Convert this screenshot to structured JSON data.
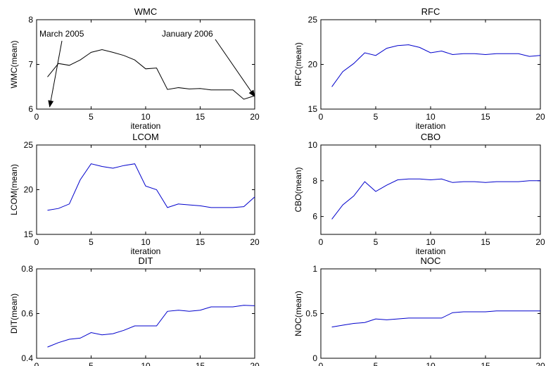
{
  "chart_data": [
    {
      "type": "line",
      "title": "WMC",
      "xlabel": "iteration",
      "ylabel": "WMC(mean)",
      "xlim": [
        0,
        20
      ],
      "ylim": [
        6,
        8
      ],
      "xticks": [
        0,
        5,
        10,
        15,
        20
      ],
      "yticks": [
        6,
        7,
        8
      ],
      "color": "#000000",
      "x": [
        1,
        2,
        3,
        4,
        5,
        6,
        7,
        8,
        9,
        10,
        11,
        12,
        13,
        14,
        15,
        16,
        17,
        18,
        19,
        20
      ],
      "values": [
        6.72,
        7.02,
        6.98,
        7.1,
        7.27,
        7.33,
        7.27,
        7.2,
        7.1,
        6.9,
        6.92,
        6.44,
        6.48,
        6.45,
        6.46,
        6.43,
        6.43,
        6.43,
        6.22,
        6.3
      ],
      "annotations": [
        {
          "text": "March 2005",
          "point_x": 1.2,
          "point_y": 6.05
        },
        {
          "text": "January 2006",
          "point_x": 20,
          "point_y": 6.28
        }
      ]
    },
    {
      "type": "line",
      "title": "RFC",
      "xlabel": "iteration",
      "ylabel": "RFC(mean)",
      "xlim": [
        0,
        20
      ],
      "ylim": [
        15,
        25
      ],
      "xticks": [
        0,
        5,
        10,
        15,
        20
      ],
      "yticks": [
        15,
        20,
        25
      ],
      "color": "#0000cc",
      "x": [
        1,
        2,
        3,
        4,
        5,
        6,
        7,
        8,
        9,
        10,
        11,
        12,
        13,
        14,
        15,
        16,
        17,
        18,
        19,
        20
      ],
      "values": [
        17.5,
        19.2,
        20.1,
        21.3,
        21.0,
        21.8,
        22.1,
        22.2,
        21.9,
        21.3,
        21.5,
        21.1,
        21.2,
        21.2,
        21.1,
        21.2,
        21.2,
        21.2,
        20.9,
        21.0
      ]
    },
    {
      "type": "line",
      "title": "LCOM",
      "xlabel": "iteration",
      "ylabel": "LCOM(mean)",
      "xlim": [
        0,
        20
      ],
      "ylim": [
        15,
        25
      ],
      "xticks": [
        0,
        5,
        10,
        15,
        20
      ],
      "yticks": [
        15,
        20,
        25
      ],
      "color": "#0000cc",
      "x": [
        1,
        2,
        3,
        4,
        5,
        6,
        7,
        8,
        9,
        10,
        11,
        12,
        13,
        14,
        15,
        16,
        17,
        18,
        19,
        20
      ],
      "values": [
        17.7,
        17.9,
        18.4,
        21.1,
        22.9,
        22.6,
        22.4,
        22.7,
        22.9,
        20.4,
        20.0,
        18.0,
        18.4,
        18.3,
        18.2,
        18.0,
        18.0,
        18.0,
        18.1,
        19.2
      ]
    },
    {
      "type": "line",
      "title": "CBO",
      "xlabel": "iteration",
      "ylabel": "CBO(mean)",
      "xlim": [
        0,
        20
      ],
      "ylim": [
        5,
        10
      ],
      "xticks": [
        0,
        5,
        10,
        15,
        20
      ],
      "yticks": [
        6,
        8,
        10
      ],
      "color": "#0000cc",
      "x": [
        1,
        2,
        3,
        4,
        5,
        6,
        7,
        8,
        9,
        10,
        11,
        12,
        13,
        14,
        15,
        16,
        17,
        18,
        19,
        20
      ],
      "values": [
        5.85,
        6.65,
        7.15,
        7.95,
        7.4,
        7.75,
        8.05,
        8.1,
        8.1,
        8.05,
        8.1,
        7.9,
        7.95,
        7.95,
        7.9,
        7.95,
        7.95,
        7.95,
        8.0,
        8.0
      ]
    },
    {
      "type": "line",
      "title": "DIT",
      "xlabel": "iteration",
      "ylabel": "DIT(mean)",
      "xlim": [
        0,
        20
      ],
      "ylim": [
        0.4,
        0.8
      ],
      "xticks": [
        0,
        5,
        10,
        15,
        20
      ],
      "yticks": [
        0.4,
        0.6,
        0.8
      ],
      "color": "#0000cc",
      "x": [
        1,
        2,
        3,
        4,
        5,
        6,
        7,
        8,
        9,
        10,
        11,
        12,
        13,
        14,
        15,
        16,
        17,
        18,
        19,
        20
      ],
      "values": [
        0.45,
        0.47,
        0.485,
        0.49,
        0.515,
        0.505,
        0.51,
        0.525,
        0.545,
        0.545,
        0.545,
        0.61,
        0.615,
        0.61,
        0.615,
        0.63,
        0.63,
        0.63,
        0.637,
        0.635
      ]
    },
    {
      "type": "line",
      "title": "NOC",
      "xlabel": "iteration",
      "ylabel": "NOC(mean)",
      "xlim": [
        0,
        20
      ],
      "ylim": [
        0,
        1
      ],
      "xticks": [
        0,
        5,
        10,
        15,
        20
      ],
      "yticks": [
        0,
        0.5,
        1
      ],
      "color": "#0000cc",
      "x": [
        1,
        2,
        3,
        4,
        5,
        6,
        7,
        8,
        9,
        10,
        11,
        12,
        13,
        14,
        15,
        16,
        17,
        18,
        19,
        20
      ],
      "values": [
        0.35,
        0.37,
        0.39,
        0.4,
        0.44,
        0.43,
        0.44,
        0.45,
        0.45,
        0.45,
        0.45,
        0.51,
        0.52,
        0.52,
        0.52,
        0.53,
        0.53,
        0.53,
        0.53,
        0.53
      ]
    }
  ]
}
